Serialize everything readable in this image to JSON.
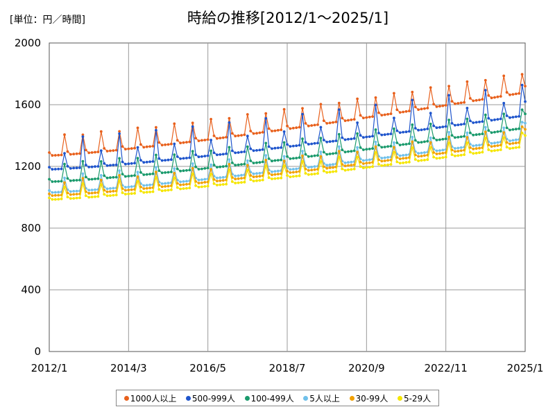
{
  "chart_data": {
    "type": "line",
    "title": "時給の推移[2012/1～2025/1]",
    "unit_label": "[単位：円／時間]",
    "x_tick_labels": [
      "2012/1",
      "2014/3",
      "2016/5",
      "2018/7",
      "2020/9",
      "2022/11",
      "2025/1"
    ],
    "x_tick_months": [
      0,
      26,
      52,
      78,
      104,
      130,
      156
    ],
    "x_range": [
      0,
      156
    ],
    "ylim": [
      0,
      2000
    ],
    "y_ticks": [
      0,
      400,
      800,
      1200,
      1600,
      2000
    ],
    "grid": true,
    "legend_position": "bottom",
    "series": [
      {
        "name": "1000人以上",
        "color": "#e8601c",
        "start_level": 1270,
        "end_level": 1680,
        "june_peak": 130,
        "december_peak": 120,
        "last_value": 1720
      },
      {
        "name": "500-999人",
        "color": "#1f55cc",
        "start_level": 1180,
        "end_level": 1530,
        "june_peak": 100,
        "december_peak": 200,
        "last_value": 1620
      },
      {
        "name": "100-499人",
        "color": "#1a9a6c",
        "start_level": 1100,
        "end_level": 1450,
        "june_peak": 110,
        "december_peak": 120,
        "last_value": 1540
      },
      {
        "name": "5人以上",
        "color": "#6fc0ea",
        "start_level": 1030,
        "end_level": 1380,
        "june_peak": 90,
        "december_peak": 110,
        "last_value": 1480
      },
      {
        "name": "30-99人",
        "color": "#f2a000",
        "start_level": 1010,
        "end_level": 1360,
        "june_peak": 80,
        "december_peak": 100,
        "last_value": 1440
      },
      {
        "name": "5-29人",
        "color": "#f5e600",
        "start_level": 985,
        "end_level": 1330,
        "june_peak": 75,
        "december_peak": 90,
        "last_value": 1400
      }
    ]
  }
}
